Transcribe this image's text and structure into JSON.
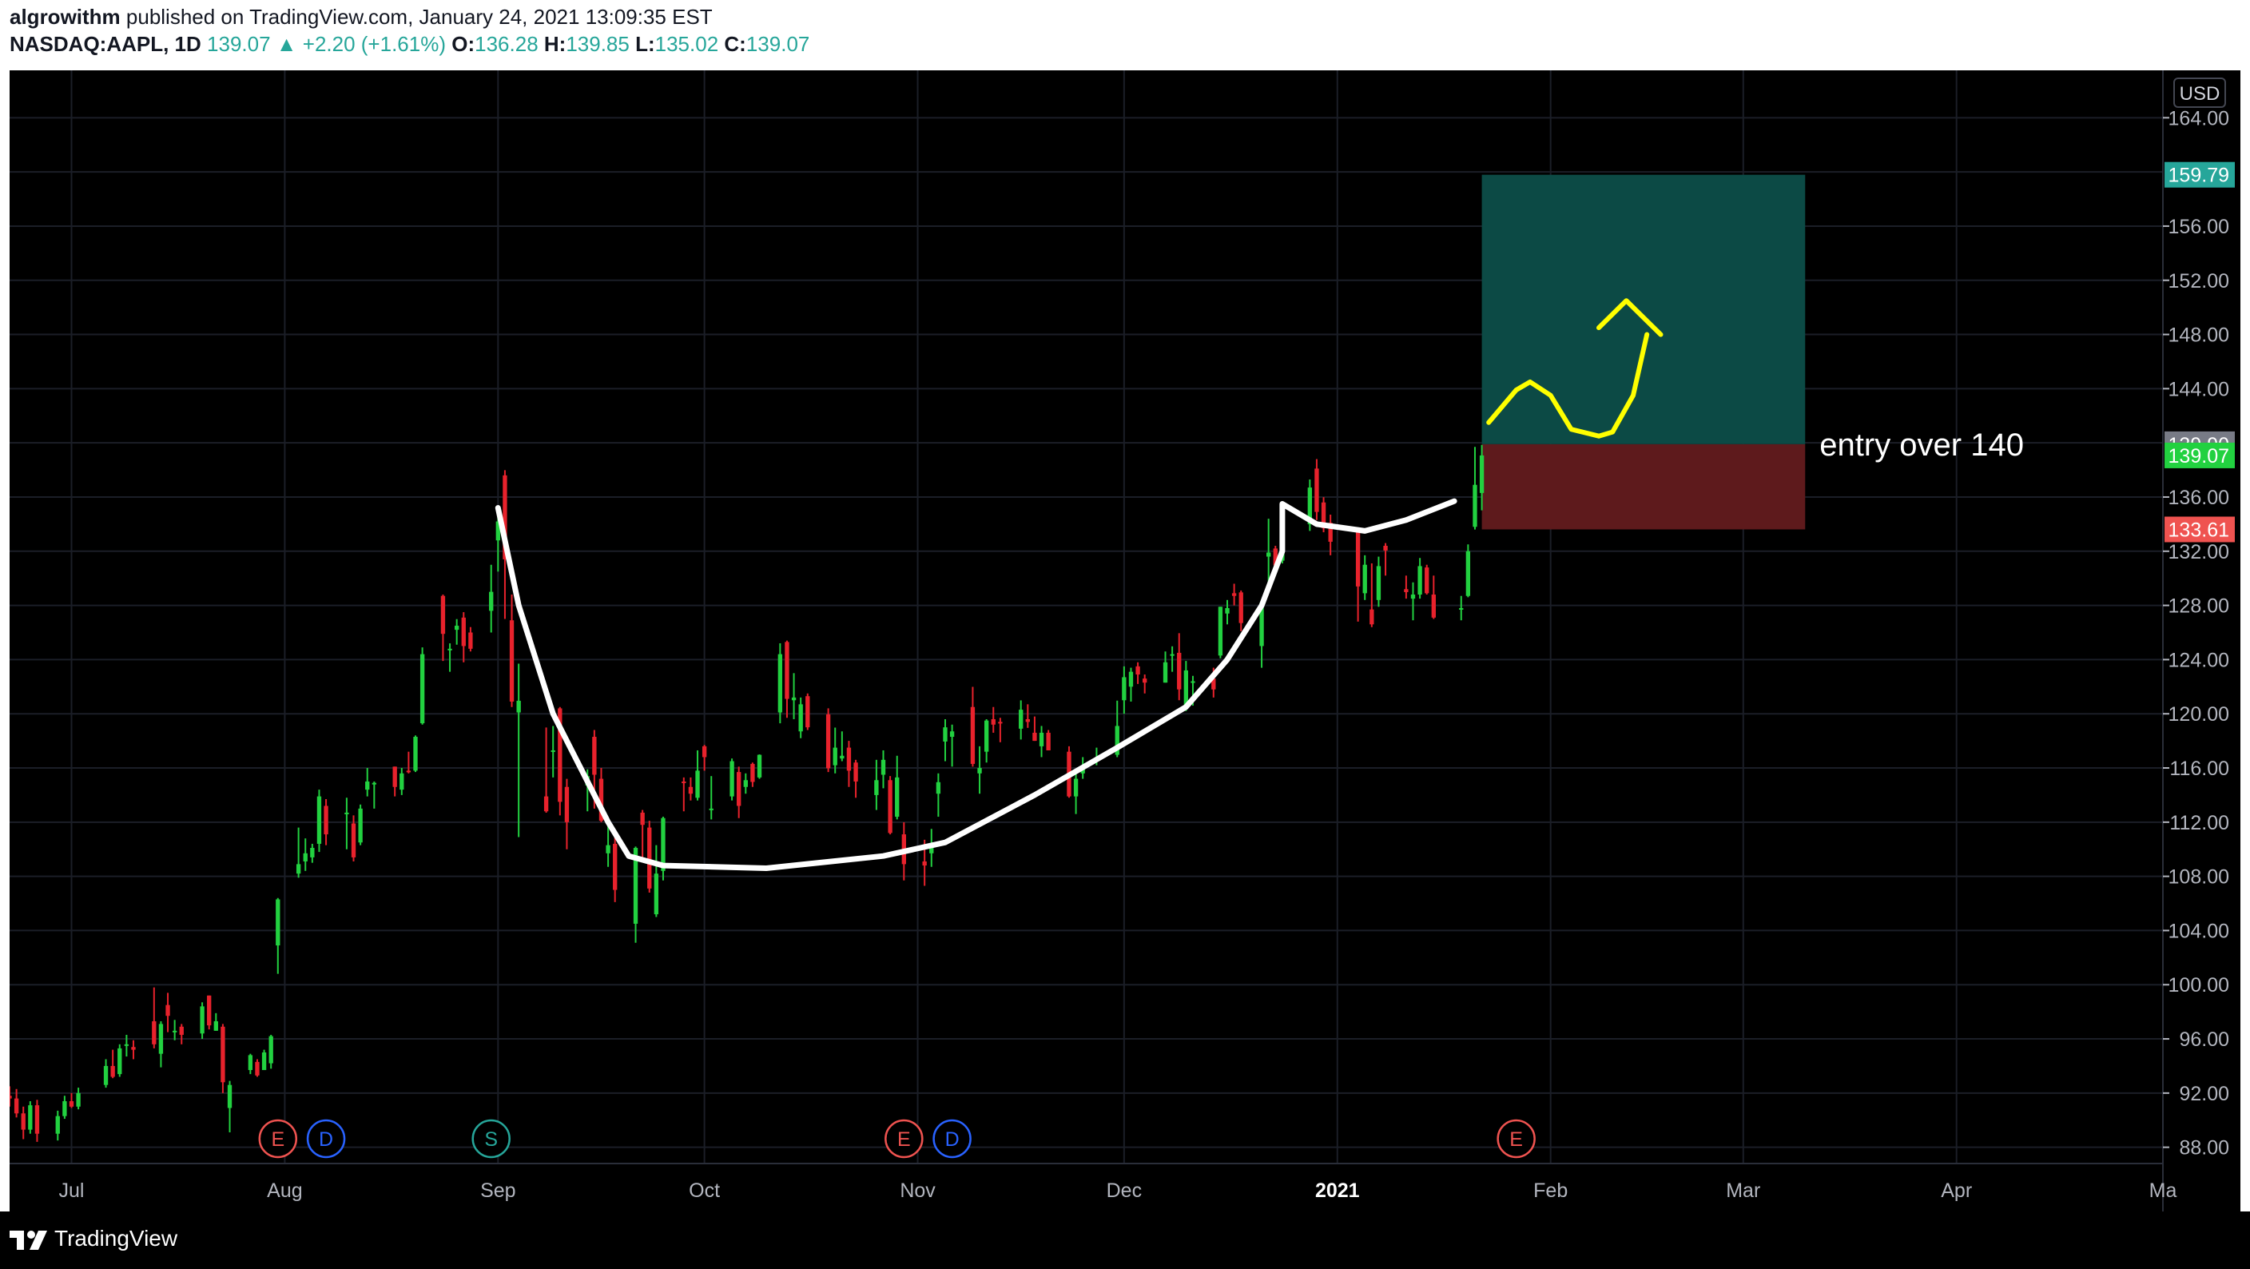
{
  "header": {
    "author": "algrowithm",
    "published_text": " published on TradingView.com, January 24, 2021 13:09:35 EST",
    "symbol": "NASDAQ:AAPL, 1D",
    "last": "139.07",
    "change_arrow": "▲",
    "change": "+2.20 (+1.61%)",
    "o_label": "O:",
    "o_value": "136.28",
    "h_label": "H:",
    "h_value": "139.85",
    "l_label": "L:",
    "l_value": "135.02",
    "c_label": "C:",
    "c_value": "139.07"
  },
  "footer": {
    "brand": "TradingView"
  },
  "colors": {
    "up": "#22d140",
    "down": "#e8222c",
    "background": "#000000",
    "profit_zone": "#0c4a45",
    "loss_zone": "#5e1a1c",
    "annotation_white": "#ffffff",
    "annotation_yellow": "#ffff00"
  },
  "chart_data": {
    "type": "candlestick",
    "symbol": "NASDAQ:AAPL",
    "interval": "1D",
    "currency": "USD",
    "y_ticks": [
      88,
      92,
      96,
      100,
      104,
      108,
      112,
      116,
      120,
      124,
      128,
      132,
      136,
      140,
      144,
      148,
      152,
      156,
      160,
      164
    ],
    "y_tick_labels": [
      "88.00",
      "92.00",
      "96.00",
      "100.00",
      "104.00",
      "108.00",
      "112.00",
      "116.00",
      "120.00",
      "124.00",
      "128.00",
      "132.00",
      "136.00",
      "",
      "144.00",
      "148.00",
      "152.00",
      "156.00",
      "",
      "164.00"
    ],
    "ylim": [
      86.8,
      167.5
    ],
    "x_labels": [
      {
        "label": "Jul",
        "date": "2020-07-01"
      },
      {
        "label": "Aug",
        "date": "2020-08-01"
      },
      {
        "label": "Sep",
        "date": "2020-09-01"
      },
      {
        "label": "Oct",
        "date": "2020-10-01"
      },
      {
        "label": "Nov",
        "date": "2020-11-01"
      },
      {
        "label": "Dec",
        "date": "2020-12-01"
      },
      {
        "label": "2021",
        "date": "2021-01-01",
        "bold": true
      },
      {
        "label": "Feb",
        "date": "2021-02-01"
      },
      {
        "label": "Mar",
        "date": "2021-03-01"
      },
      {
        "label": "Apr",
        "date": "2021-04-01"
      },
      {
        "label": "Ma",
        "date": "2021-05-01"
      }
    ],
    "xlim": [
      "2020-06-22",
      "2021-05-01"
    ],
    "price_labels": [
      {
        "value": 159.79,
        "text": "159.79",
        "color": "#26a69a"
      },
      {
        "value": 139.9,
        "text": "139.90",
        "color": "#787b86"
      },
      {
        "value": 139.07,
        "text": "139.07",
        "color": "#22d140"
      },
      {
        "value": 133.61,
        "text": "133.61",
        "color": "#ef5350"
      }
    ],
    "position": {
      "start": "2021-01-22",
      "end": "2021-03-10",
      "entry": 139.9,
      "target": 159.79,
      "stop": 133.61,
      "label": "entry over 140"
    },
    "events": [
      {
        "letter": "E",
        "date": "2020-07-31",
        "kind": "earnings"
      },
      {
        "letter": "D",
        "date": "2020-08-07",
        "kind": "dividend"
      },
      {
        "letter": "S",
        "date": "2020-08-31",
        "kind": "split"
      },
      {
        "letter": "E",
        "date": "2020-10-30",
        "kind": "earnings"
      },
      {
        "letter": "D",
        "date": "2020-11-06",
        "kind": "dividend"
      },
      {
        "letter": "E",
        "date": "2021-01-27",
        "kind": "earnings"
      }
    ],
    "cup_curve": [
      [
        "2020-09-01",
        135.2
      ],
      [
        "2020-09-04",
        128
      ],
      [
        "2020-09-09",
        120
      ],
      [
        "2020-09-14",
        115
      ],
      [
        "2020-09-17",
        112
      ],
      [
        "2020-09-20",
        109.5
      ],
      [
        "2020-09-25",
        108.8
      ],
      [
        "2020-10-10",
        108.6
      ],
      [
        "2020-10-27",
        109.5
      ],
      [
        "2020-11-05",
        110.5
      ],
      [
        "2020-11-18",
        114
      ],
      [
        "2020-11-30",
        117.5
      ],
      [
        "2020-12-10",
        120.5
      ],
      [
        "2020-12-16",
        124
      ],
      [
        "2020-12-21",
        128
      ],
      [
        "2020-12-24",
        132
      ],
      [
        "2020-12-24",
        135.5
      ],
      [
        "2020-12-29",
        134
      ],
      [
        "2021-01-05",
        133.5
      ],
      [
        "2021-01-11",
        134.3
      ],
      [
        "2021-01-18",
        135.7
      ]
    ],
    "arrow_curve": [
      [
        "2021-01-23",
        141.5
      ],
      [
        "2021-01-27",
        143.9
      ],
      [
        "2021-01-29",
        144.5
      ],
      [
        "2021-02-01",
        143.5
      ],
      [
        "2021-02-04",
        141
      ],
      [
        "2021-02-08",
        140.5
      ],
      [
        "2021-02-10",
        140.8
      ],
      [
        "2021-02-13",
        143.5
      ],
      [
        "2021-02-15",
        148
      ]
    ],
    "arrow_head": [
      [
        "2021-02-08",
        148.5
      ],
      [
        "2021-02-12",
        150.5
      ],
      [
        "2021-02-17",
        148
      ]
    ],
    "candles": [
      [
        "2020-06-22",
        91.8,
        92.5,
        91.0,
        91.6
      ],
      [
        "2020-06-23",
        91.6,
        92.3,
        90.2,
        90.5
      ],
      [
        "2020-06-24",
        90.5,
        91.0,
        88.6,
        89.3
      ],
      [
        "2020-06-25",
        89.3,
        91.4,
        89.0,
        91.1
      ],
      [
        "2020-06-26",
        91.1,
        91.5,
        88.4,
        89.0
      ],
      [
        "2020-06-29",
        89.0,
        90.7,
        88.5,
        90.3
      ],
      [
        "2020-06-30",
        90.3,
        91.8,
        90.1,
        91.4
      ],
      [
        "2020-07-01",
        91.4,
        92.0,
        90.9,
        91.0
      ],
      [
        "2020-07-02",
        91.0,
        92.4,
        90.8,
        92.0
      ],
      [
        "2020-07-06",
        92.6,
        94.5,
        92.4,
        94.0
      ],
      [
        "2020-07-07",
        94.0,
        95.2,
        93.1,
        93.2
      ],
      [
        "2020-07-08",
        93.4,
        95.6,
        93.2,
        95.3
      ],
      [
        "2020-07-09",
        95.6,
        96.3,
        94.7,
        95.6
      ],
      [
        "2020-07-10",
        95.4,
        95.9,
        94.5,
        95.2
      ],
      [
        "2020-07-13",
        97.3,
        99.8,
        95.3,
        95.6
      ],
      [
        "2020-07-14",
        94.9,
        97.3,
        93.9,
        97.1
      ],
      [
        "2020-07-15",
        98.5,
        99.4,
        96.5,
        97.7
      ],
      [
        "2020-07-16",
        96.6,
        97.4,
        95.9,
        96.6
      ],
      [
        "2020-07-17",
        96.9,
        97.1,
        95.6,
        96.3
      ],
      [
        "2020-07-20",
        96.4,
        98.7,
        96.0,
        98.4
      ],
      [
        "2020-07-21",
        99.2,
        99.2,
        96.7,
        97.0
      ],
      [
        "2020-07-22",
        96.6,
        97.9,
        96.6,
        97.3
      ],
      [
        "2020-07-23",
        96.9,
        97.1,
        92.0,
        92.8
      ],
      [
        "2020-07-24",
        90.9,
        92.9,
        89.1,
        92.6
      ],
      [
        "2020-07-27",
        93.7,
        94.9,
        93.4,
        94.8
      ],
      [
        "2020-07-28",
        94.3,
        94.5,
        93.2,
        93.3
      ],
      [
        "2020-07-29",
        93.7,
        95.2,
        93.7,
        95.0
      ],
      [
        "2020-07-30",
        94.2,
        96.3,
        93.8,
        96.2
      ],
      [
        "2020-07-31",
        102.9,
        106.4,
        100.8,
        106.3
      ],
      [
        "2020-08-03",
        108.2,
        111.6,
        107.9,
        108.9
      ],
      [
        "2020-08-04",
        109.1,
        110.8,
        108.4,
        109.7
      ],
      [
        "2020-08-05",
        109.4,
        110.4,
        109.0,
        110.1
      ],
      [
        "2020-08-06",
        110.4,
        114.4,
        109.8,
        113.9
      ],
      [
        "2020-08-07",
        113.2,
        113.7,
        110.3,
        111.1
      ],
      [
        "2020-08-10",
        112.6,
        113.8,
        110.0,
        112.7
      ],
      [
        "2020-08-11",
        111.9,
        112.5,
        109.1,
        109.4
      ],
      [
        "2020-08-12",
        110.5,
        113.3,
        110.3,
        113.0
      ],
      [
        "2020-08-13",
        114.4,
        116.0,
        113.9,
        115.0
      ],
      [
        "2020-08-14",
        114.8,
        115.0,
        113.0,
        114.9
      ],
      [
        "2020-08-17",
        116.1,
        116.1,
        113.9,
        114.6
      ],
      [
        "2020-08-18",
        114.4,
        116.0,
        114.0,
        115.6
      ],
      [
        "2020-08-19",
        115.8,
        117.2,
        115.6,
        115.7
      ],
      [
        "2020-08-20",
        115.8,
        118.4,
        115.7,
        118.3
      ],
      [
        "2020-08-21",
        119.3,
        124.9,
        119.2,
        124.4
      ],
      [
        "2020-08-24",
        128.7,
        128.8,
        123.9,
        125.9
      ],
      [
        "2020-08-25",
        124.7,
        125.2,
        123.1,
        124.8
      ],
      [
        "2020-08-26",
        126.2,
        126.99,
        125.1,
        126.5
      ],
      [
        "2020-08-27",
        127.1,
        127.5,
        123.8,
        125.0
      ],
      [
        "2020-08-28",
        126.0,
        126.4,
        124.6,
        124.8
      ],
      [
        "2020-08-31",
        127.6,
        131.0,
        126.0,
        129.0
      ],
      [
        "2020-09-01",
        132.8,
        134.8,
        130.5,
        134.2
      ],
      [
        "2020-09-02",
        137.6,
        137.98,
        127.0,
        131.4
      ],
      [
        "2020-09-03",
        126.9,
        128.8,
        120.5,
        120.9
      ],
      [
        "2020-09-04",
        120.1,
        123.7,
        110.9,
        120.96
      ],
      [
        "2020-09-08",
        113.9,
        118.99,
        112.7,
        112.8
      ],
      [
        "2020-09-09",
        117.3,
        119.1,
        115.3,
        117.3
      ],
      [
        "2020-09-10",
        120.4,
        120.5,
        112.5,
        113.5
      ],
      [
        "2020-09-11",
        114.6,
        115.2,
        110.0,
        112.0
      ],
      [
        "2020-09-14",
        114.7,
        115.9,
        112.8,
        115.4
      ],
      [
        "2020-09-15",
        118.3,
        118.8,
        113.0,
        115.5
      ],
      [
        "2020-09-16",
        115.2,
        116.0,
        112.0,
        112.1
      ],
      [
        "2020-09-17",
        109.7,
        112.2,
        108.7,
        110.3
      ],
      [
        "2020-09-18",
        110.4,
        110.9,
        106.1,
        107.0
      ],
      [
        "2020-09-21",
        104.5,
        110.2,
        103.1,
        110.1
      ],
      [
        "2020-09-22",
        112.7,
        112.9,
        109.2,
        111.8
      ],
      [
        "2020-09-23",
        111.6,
        112.1,
        106.8,
        107.1
      ],
      [
        "2020-09-24",
        105.2,
        110.3,
        105.0,
        108.2
      ],
      [
        "2020-09-25",
        108.4,
        112.4,
        107.7,
        112.3
      ],
      [
        "2020-09-28",
        115.0,
        115.3,
        112.8,
        114.96
      ],
      [
        "2020-09-29",
        114.6,
        115.3,
        113.6,
        114.1
      ],
      [
        "2020-09-30",
        113.8,
        117.3,
        113.6,
        115.8
      ],
      [
        "2020-10-01",
        117.6,
        117.7,
        115.8,
        116.8
      ],
      [
        "2020-10-02",
        112.9,
        115.4,
        112.2,
        113.0
      ],
      [
        "2020-10-05",
        113.9,
        116.7,
        113.6,
        116.5
      ],
      [
        "2020-10-06",
        115.7,
        116.1,
        112.3,
        113.2
      ],
      [
        "2020-10-07",
        114.6,
        115.6,
        114.1,
        115.1
      ],
      [
        "2020-10-08",
        116.3,
        116.4,
        114.6,
        114.97
      ],
      [
        "2020-10-09",
        115.3,
        117.0,
        115.2,
        116.97
      ],
      [
        "2020-10-12",
        120.1,
        125.2,
        119.3,
        124.4
      ],
      [
        "2020-10-13",
        125.3,
        125.4,
        119.7,
        121.1
      ],
      [
        "2020-10-14",
        121.0,
        123.0,
        119.6,
        121.2
      ],
      [
        "2020-10-15",
        118.7,
        121.2,
        118.2,
        120.7
      ],
      [
        "2020-10-16",
        121.3,
        121.5,
        118.8,
        119.0
      ],
      [
        "2020-10-19",
        119.96,
        120.4,
        115.7,
        115.98
      ],
      [
        "2020-10-20",
        116.2,
        118.98,
        115.6,
        117.5
      ],
      [
        "2020-10-21",
        116.7,
        118.7,
        116.5,
        116.9
      ],
      [
        "2020-10-22",
        117.5,
        118.0,
        114.6,
        115.8
      ],
      [
        "2020-10-23",
        116.4,
        116.6,
        113.8,
        115.0
      ],
      [
        "2020-10-26",
        114.0,
        116.6,
        112.9,
        115.1
      ],
      [
        "2020-10-27",
        115.5,
        117.3,
        114.5,
        116.6
      ],
      [
        "2020-10-28",
        115.1,
        115.4,
        111.1,
        111.2
      ],
      [
        "2020-10-29",
        112.4,
        116.9,
        112.2,
        115.3
      ],
      [
        "2020-10-30",
        111.1,
        111.99,
        107.7,
        108.9
      ],
      [
        "2020-11-02",
        109.1,
        110.7,
        107.3,
        108.8
      ],
      [
        "2020-11-03",
        109.7,
        111.5,
        108.7,
        110.4
      ],
      [
        "2020-11-04",
        114.1,
        115.6,
        112.4,
        114.95
      ],
      [
        "2020-11-05",
        117.95,
        119.6,
        116.5,
        119.0
      ],
      [
        "2020-11-06",
        118.3,
        119.2,
        116.1,
        118.7
      ],
      [
        "2020-11-09",
        120.5,
        121.99,
        116.1,
        116.3
      ],
      [
        "2020-11-10",
        115.6,
        117.6,
        114.1,
        116.0
      ],
      [
        "2020-11-11",
        117.2,
        119.6,
        116.4,
        119.5
      ],
      [
        "2020-11-12",
        119.6,
        120.5,
        118.6,
        119.2
      ],
      [
        "2020-11-13",
        119.4,
        119.7,
        117.9,
        119.3
      ],
      [
        "2020-11-16",
        118.9,
        120.99,
        118.1,
        120.3
      ],
      [
        "2020-11-17",
        119.6,
        120.7,
        118.96,
        119.4
      ],
      [
        "2020-11-18",
        118.6,
        119.8,
        118.0,
        118.0
      ],
      [
        "2020-11-19",
        117.6,
        119.1,
        116.8,
        118.6
      ],
      [
        "2020-11-20",
        118.6,
        118.8,
        117.3,
        117.3
      ],
      [
        "2020-11-23",
        117.2,
        117.6,
        113.8,
        113.9
      ],
      [
        "2020-11-24",
        113.9,
        115.9,
        112.6,
        115.2
      ],
      [
        "2020-11-25",
        115.6,
        116.8,
        115.2,
        116.0
      ],
      [
        "2020-11-27",
        116.6,
        117.5,
        116.2,
        116.6
      ],
      [
        "2020-11-30",
        116.97,
        120.97,
        116.8,
        119.1
      ],
      [
        "2020-12-01",
        121.0,
        123.5,
        120.0,
        122.7
      ],
      [
        "2020-12-02",
        122.0,
        123.4,
        120.9,
        123.1
      ],
      [
        "2020-12-03",
        123.5,
        123.8,
        122.2,
        122.9
      ],
      [
        "2020-12-04",
        122.6,
        122.9,
        121.5,
        122.3
      ],
      [
        "2020-12-07",
        122.3,
        124.6,
        122.3,
        123.8
      ],
      [
        "2020-12-08",
        124.4,
        124.98,
        123.1,
        124.4
      ],
      [
        "2020-12-09",
        124.5,
        125.95,
        121.0,
        121.8
      ],
      [
        "2020-12-10",
        120.5,
        123.9,
        120.2,
        123.2
      ],
      [
        "2020-12-11",
        122.4,
        122.8,
        120.6,
        122.4
      ],
      [
        "2020-12-14",
        122.6,
        123.4,
        121.2,
        121.8
      ],
      [
        "2020-12-15",
        124.3,
        127.9,
        124.1,
        127.9
      ],
      [
        "2020-12-16",
        127.4,
        128.4,
        126.6,
        127.8
      ],
      [
        "2020-12-17",
        128.9,
        129.6,
        128.0,
        128.7
      ],
      [
        "2020-12-18",
        128.96,
        129.1,
        126.1,
        126.7
      ],
      [
        "2020-12-21",
        125.0,
        128.3,
        123.4,
        128.2
      ],
      [
        "2020-12-22",
        131.6,
        134.4,
        129.7,
        131.9
      ],
      [
        "2020-12-23",
        132.2,
        132.4,
        130.8,
        130.96
      ],
      [
        "2020-12-24",
        131.3,
        133.5,
        131.1,
        131.97
      ],
      [
        "2020-12-28",
        133.99,
        137.3,
        133.5,
        136.7
      ],
      [
        "2020-12-29",
        138.1,
        138.8,
        134.3,
        134.9
      ],
      [
        "2020-12-30",
        135.6,
        135.99,
        133.4,
        133.7
      ],
      [
        "2020-12-31",
        134.1,
        134.7,
        131.7,
        132.7
      ],
      [
        "2021-01-04",
        133.5,
        133.6,
        126.8,
        129.4
      ],
      [
        "2021-01-05",
        128.9,
        131.7,
        128.4,
        131.0
      ],
      [
        "2021-01-06",
        127.7,
        131.1,
        126.4,
        126.6
      ],
      [
        "2021-01-07",
        128.4,
        131.6,
        127.9,
        130.9
      ],
      [
        "2021-01-08",
        132.4,
        132.6,
        130.2,
        132.05
      ],
      [
        "2021-01-11",
        129.2,
        130.2,
        128.5,
        128.98
      ],
      [
        "2021-01-12",
        128.5,
        129.7,
        126.9,
        128.8
      ],
      [
        "2021-01-13",
        128.8,
        131.5,
        128.5,
        130.9
      ],
      [
        "2021-01-14",
        130.8,
        131.0,
        128.8,
        128.9
      ],
      [
        "2021-01-15",
        128.8,
        130.2,
        127.0,
        127.1
      ],
      [
        "2021-01-19",
        127.8,
        128.7,
        126.9,
        127.8
      ],
      [
        "2021-01-20",
        128.7,
        132.5,
        128.6,
        132.0
      ],
      [
        "2021-01-21",
        133.8,
        139.7,
        133.6,
        136.9
      ],
      [
        "2021-01-22",
        136.3,
        139.85,
        135.02,
        139.07
      ]
    ]
  }
}
